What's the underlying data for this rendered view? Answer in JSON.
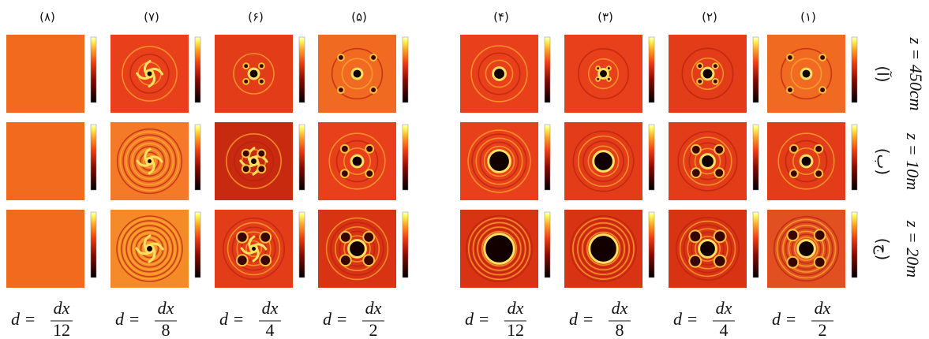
{
  "column_headers": [
    "(۸)",
    "(۷)",
    "(۶)",
    "(۵)",
    "(۴)",
    "(۳)",
    "(۲)",
    "(۱)"
  ],
  "row_labels": [
    "(آ)",
    "(ب)",
    "(ج)"
  ],
  "distance_labels": [
    "z = 450cm",
    "z = 10m",
    "z = 20m"
  ],
  "bottom_labels": [
    {
      "lhs": "d =",
      "numerator": "dx",
      "denominator": "12"
    },
    {
      "lhs": "d =",
      "numerator": "dx",
      "denominator": "8"
    },
    {
      "lhs": "d =",
      "numerator": "dx",
      "denominator": "4"
    },
    {
      "lhs": "d =",
      "numerator": "dx",
      "denominator": "2"
    },
    {
      "lhs": "d =",
      "numerator": "dx",
      "denominator": "12"
    },
    {
      "lhs": "d =",
      "numerator": "dx",
      "denominator": "8"
    },
    {
      "lhs": "d =",
      "numerator": "dx",
      "denominator": "4"
    },
    {
      "lhs": "d =",
      "numerator": "dx",
      "denominator": "2"
    }
  ]
}
